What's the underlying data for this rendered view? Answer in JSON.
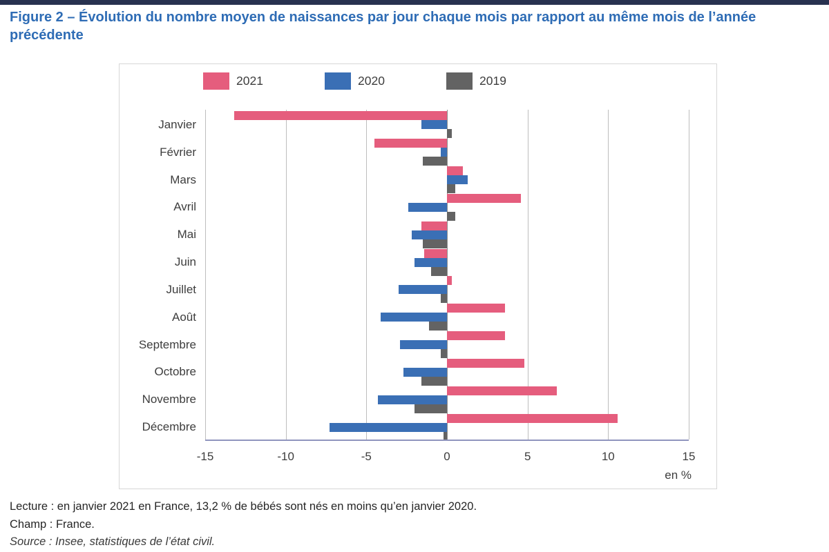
{
  "page": {
    "top_bar_color": "#283250",
    "title": "Figure 2 – Évolution du nombre moyen de naissances par jour chaque mois par rapport au même mois de l’année précédente",
    "title_color": "#2e6cb5",
    "footer": {
      "lecture": "Lecture : en janvier 2021 en France, 13,2 % de bébés sont nés en moins qu’en janvier 2020.",
      "champ": "Champ : France.",
      "source": "Source : Insee, statistiques de l’état civil."
    }
  },
  "chart_data": {
    "type": "bar",
    "orientation": "horizontal",
    "title": "Figure 2 – Évolution du nombre moyen de naissances par jour chaque mois par rapport au même mois de l’année précédente",
    "unit_label": "en %",
    "xlim": [
      -15,
      15
    ],
    "xticks": [
      -15,
      -10,
      -5,
      0,
      5,
      10,
      15
    ],
    "grid": "vertical gridlines every 5 %",
    "legend_position": "top",
    "categories": [
      "Janvier",
      "Février",
      "Mars",
      "Avril",
      "Mai",
      "Juin",
      "Juillet",
      "Août",
      "Septembre",
      "Octobre",
      "Novembre",
      "Décembre"
    ],
    "series": [
      {
        "name": "2021",
        "color": "#e55d7d",
        "values": [
          -13.2,
          -4.5,
          1.0,
          4.6,
          -1.6,
          -1.4,
          0.3,
          3.6,
          3.6,
          4.8,
          6.8,
          10.6
        ]
      },
      {
        "name": "2020",
        "color": "#3a6fb5",
        "values": [
          -1.6,
          -0.4,
          1.3,
          -2.4,
          -2.2,
          -2.0,
          -3.0,
          -4.1,
          -2.9,
          -2.7,
          -4.3,
          -7.3
        ]
      },
      {
        "name": "2019",
        "color": "#636363",
        "values": [
          0.3,
          -1.5,
          0.5,
          0.5,
          -1.5,
          -1.0,
          -0.4,
          -1.1,
          -0.4,
          -1.6,
          -2.0,
          -0.2
        ]
      }
    ]
  }
}
